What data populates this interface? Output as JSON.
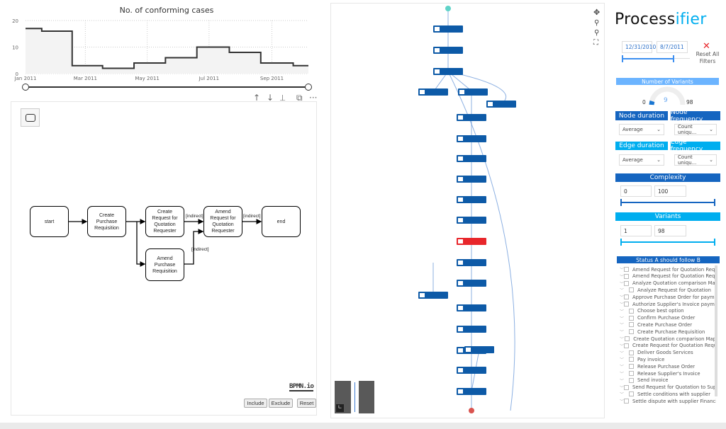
{
  "chart_data": {
    "type": "line",
    "step": true,
    "title": "No. of conforming cases",
    "x": [
      "2011-01-01",
      "2011-01-17",
      "2011-02-16",
      "2011-03-18",
      "2011-04-18",
      "2011-05-19",
      "2011-06-19",
      "2011-07-21",
      "2011-08-21",
      "2011-09-22",
      "2011-10-07"
    ],
    "values": [
      17,
      16,
      3,
      2,
      4,
      6,
      10,
      8,
      4,
      3,
      3
    ],
    "xticks": [
      "Jan 2011",
      "Mar 2011",
      "May 2011",
      "Jul 2011",
      "Sep 2011"
    ],
    "xtick_dates": [
      "2011-01-01",
      "2011-03-01",
      "2011-05-01",
      "2011-07-01",
      "2011-09-01"
    ],
    "yticks": [
      "0",
      "10",
      "20"
    ],
    "ylim": [
      0,
      20
    ],
    "grid": true,
    "fill": "#f3f3f3",
    "line_color": "#333333"
  },
  "visual_toolbar": {
    "icons": [
      "arrow-up-icon",
      "arrow-down-icon",
      "hierarchy-icon",
      "copy-icon",
      "more-icon"
    ],
    "up": "↑",
    "down": "↓",
    "drill": "⍊",
    "copy": "⧉",
    "more": "···"
  },
  "bpmn": {
    "nodes": {
      "start": "start",
      "create_pr": "Create Purchase Requisition",
      "create_rfq": "Create Request for Quotation Requester",
      "amend_rfq": "Amend Request for Quotation Requester",
      "end": "end",
      "amend_pr": "Amend Purchase Requisition"
    },
    "edge_labels": [
      "[indirect]",
      "[indirect]",
      "[indirect]"
    ],
    "logo": "BPMN.io",
    "buttons": {
      "include": "Include",
      "exclude": "Exclude",
      "reset": "Reset"
    }
  },
  "sidebar": {
    "logo_dark": "Process",
    "logo_accent": "ifier",
    "date_from": "12/31/2010",
    "date_to": "8/7/2011",
    "reset_icon": "close-icon",
    "reset_label": "Reset All Filters",
    "variants_gauge": {
      "title": "Number of Variants",
      "min": "0",
      "value": "9",
      "max": "98"
    },
    "node_duration": {
      "label": "Node duration",
      "value": "Average"
    },
    "node_frequency": {
      "label": "Node frequency",
      "value": "Count uniqu..."
    },
    "edge_duration": {
      "label": "Edge duration",
      "value": "Average"
    },
    "edge_frequency": {
      "label": "Edge frequency",
      "value": "Count uniqu..."
    },
    "complexity": {
      "label": "Complexity",
      "min": "0",
      "max": "100"
    },
    "variants": {
      "label": "Variants",
      "min": "1",
      "max": "98"
    },
    "status_list": {
      "title": "Status A should follow B",
      "items": [
        "Amend Request for Quotation Reque...",
        "Amend Request for Quotation Reque...",
        "Analyze Quotation comparison Map",
        "Analyze Request for Quotation",
        "Approve Purchase Order for payment",
        "Authorize Supplier's Invoice payment",
        "Choose best option",
        "Confirm Purchase Order",
        "Create Purchase Order",
        "Create Purchase Requisition",
        "Create Quotation comparison Map",
        "Create Request for Quotation Reques...",
        "Deliver Goods Services",
        "Pay invoice",
        "Release Purchase Order",
        "Release Supplier's Invoice",
        "Send invoice",
        "Send Request for Quotation to Suppli...",
        "Settle conditions with supplier",
        "Settle dispute with supplier Financial ..."
      ]
    }
  },
  "colors": {
    "dark_blue": "#1565c0",
    "light_blue": "#00aeef",
    "node_blue": "#0d5aa7",
    "red": "#e8262b",
    "start_teal": "#5fd3c8"
  }
}
